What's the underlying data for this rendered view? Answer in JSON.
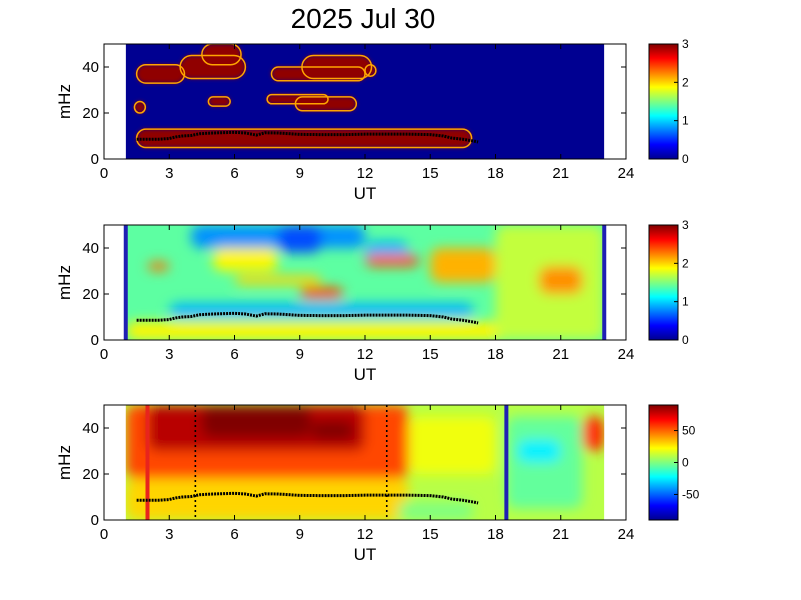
{
  "colors": {
    "background": "#ffffff",
    "axis": "#000000",
    "trace": "#000000",
    "marker_red": "#e8241d",
    "marker_blue": "#1f1fb4"
  },
  "chart_data": [
    {
      "type": "heatmap",
      "title": "2025 Jul 30",
      "xlabel": "UT",
      "ylabel": "mHz",
      "xlim": [
        0,
        24
      ],
      "ylim": [
        0,
        50
      ],
      "xticks": [
        "0",
        "3",
        "6",
        "9",
        "12",
        "15",
        "18",
        "21",
        "24"
      ],
      "yticks": [
        "0",
        "20",
        "40"
      ],
      "colorbar": {
        "range": [
          0,
          3
        ],
        "ticks": [
          "0",
          "1",
          "2",
          "3"
        ],
        "colormap": "jet"
      },
      "data_extent": [
        1,
        23
      ],
      "regions": [
        {
          "x": [
            4.5,
            6.3
          ],
          "y": [
            41,
            50
          ],
          "value": 2.95
        },
        {
          "x": [
            1.5,
            3.7
          ],
          "y": [
            33,
            41
          ],
          "value": 2.95
        },
        {
          "x": [
            3.5,
            6.5
          ],
          "y": [
            35,
            45
          ],
          "value": 2.95
        },
        {
          "x": [
            7.7,
            12.0
          ],
          "y": [
            34,
            40
          ],
          "value": 2.95
        },
        {
          "x": [
            9.1,
            12.3
          ],
          "y": [
            35,
            45
          ],
          "value": 2.95
        },
        {
          "x": [
            12.0,
            12.5
          ],
          "y": [
            36,
            41
          ],
          "value": 2.95
        },
        {
          "x": [
            1.4,
            1.9
          ],
          "y": [
            20,
            25
          ],
          "value": 2.95
        },
        {
          "x": [
            4.8,
            5.8
          ],
          "y": [
            23,
            27
          ],
          "value": 2.95
        },
        {
          "x": [
            7.5,
            10.3
          ],
          "y": [
            24,
            28
          ],
          "value": 2.95
        },
        {
          "x": [
            8.8,
            11.6
          ],
          "y": [
            21,
            27
          ],
          "value": 2.95
        },
        {
          "x": [
            1.5,
            16.9
          ],
          "y": [
            5,
            13
          ],
          "value": 2.95
        }
      ],
      "trace": [
        [
          1.5,
          8.6
        ],
        [
          2.5,
          8.6
        ],
        [
          3,
          8.9
        ],
        [
          3.3,
          9.6
        ],
        [
          3.6,
          10
        ],
        [
          4,
          10.2
        ],
        [
          4.4,
          11
        ],
        [
          5,
          11.3
        ],
        [
          6,
          11.6
        ],
        [
          6.5,
          11.3
        ],
        [
          7,
          10.4
        ],
        [
          7.4,
          11.4
        ],
        [
          8,
          11.3
        ],
        [
          9,
          10.7
        ],
        [
          10,
          10.6
        ],
        [
          11,
          10.6
        ],
        [
          12,
          10.8
        ],
        [
          13,
          10.8
        ],
        [
          14,
          10.8
        ],
        [
          15,
          10.6
        ],
        [
          15.6,
          10
        ],
        [
          16,
          9.1
        ],
        [
          16.5,
          8.6
        ],
        [
          17,
          7.8
        ],
        [
          17.2,
          7.4
        ]
      ]
    },
    {
      "type": "heatmap",
      "title": "",
      "xlabel": "UT",
      "ylabel": "mHz",
      "xlim": [
        0,
        24
      ],
      "ylim": [
        0,
        50
      ],
      "xticks": [
        "0",
        "3",
        "6",
        "9",
        "12",
        "15",
        "18",
        "21",
        "24"
      ],
      "yticks": [
        "0",
        "20",
        "40"
      ],
      "colorbar": {
        "range": [
          0,
          3
        ],
        "ticks": [
          "0",
          "1",
          "2",
          "3"
        ],
        "colormap": "jet"
      },
      "data_extent": [
        1,
        23
      ],
      "edge_lines": [
        1,
        23
      ],
      "regions": [
        {
          "x": [
            1,
            23
          ],
          "y": [
            0,
            50
          ],
          "value": 1.4
        },
        {
          "x": [
            1,
            23
          ],
          "y": [
            0,
            8
          ],
          "value": 1.9
        },
        {
          "x": [
            4,
            12
          ],
          "y": [
            40,
            50
          ],
          "value": 0.8
        },
        {
          "x": [
            8,
            10
          ],
          "y": [
            38,
            50
          ],
          "value": 0.6
        },
        {
          "x": [
            12,
            14
          ],
          "y": [
            33,
            43
          ],
          "value": 0.9
        },
        {
          "x": [
            15,
            18
          ],
          "y": [
            25,
            40
          ],
          "value": 2.1
        },
        {
          "x": [
            5,
            8
          ],
          "y": [
            30,
            40
          ],
          "value": 1.9
        },
        {
          "x": [
            12,
            14.5
          ],
          "y": [
            32,
            37
          ],
          "value": 2.4
        },
        {
          "x": [
            18,
            23
          ],
          "y": [
            0,
            50
          ],
          "value": 1.7
        },
        {
          "x": [
            20,
            22
          ],
          "y": [
            20,
            32
          ],
          "value": 2.2
        },
        {
          "x": [
            2,
            3
          ],
          "y": [
            30,
            34
          ],
          "value": 2.3
        },
        {
          "x": [
            3,
            17
          ],
          "y": [
            10,
            16
          ],
          "value": 0.9
        },
        {
          "x": [
            9,
            11
          ],
          "y": [
            18,
            23
          ],
          "value": 2.4
        },
        {
          "x": [
            6,
            10
          ],
          "y": [
            24,
            28
          ],
          "value": 2.0
        }
      ],
      "trace": [
        [
          1.5,
          8.6
        ],
        [
          2.5,
          8.6
        ],
        [
          3,
          8.9
        ],
        [
          3.3,
          9.6
        ],
        [
          3.6,
          10
        ],
        [
          4,
          10.2
        ],
        [
          4.4,
          11
        ],
        [
          5,
          11.3
        ],
        [
          6,
          11.6
        ],
        [
          6.5,
          11.3
        ],
        [
          7,
          10.4
        ],
        [
          7.4,
          11.4
        ],
        [
          8,
          11.3
        ],
        [
          9,
          10.7
        ],
        [
          10,
          10.6
        ],
        [
          11,
          10.6
        ],
        [
          12,
          10.8
        ],
        [
          13,
          10.8
        ],
        [
          14,
          10.8
        ],
        [
          15,
          10.6
        ],
        [
          15.6,
          10
        ],
        [
          16,
          9.1
        ],
        [
          16.5,
          8.6
        ],
        [
          17,
          7.8
        ],
        [
          17.2,
          7.4
        ]
      ]
    },
    {
      "type": "heatmap",
      "title": "",
      "xlabel": "UT",
      "ylabel": "mHz",
      "xlim": [
        0,
        24
      ],
      "ylim": [
        0,
        50
      ],
      "xticks": [
        "0",
        "3",
        "6",
        "9",
        "12",
        "15",
        "18",
        "21",
        "24"
      ],
      "yticks": [
        "0",
        "20",
        "40"
      ],
      "colorbar": {
        "range": [
          -90,
          90
        ],
        "ticks": [
          "50",
          "0",
          "-50"
        ],
        "tick_values": [
          50,
          0,
          -50
        ],
        "colormap": "jet"
      },
      "data_extent": [
        1,
        23
      ],
      "regions": [
        {
          "x": [
            1,
            23
          ],
          "y": [
            0,
            50
          ],
          "value": 10
        },
        {
          "x": [
            1,
            14
          ],
          "y": [
            18,
            50
          ],
          "value": 55
        },
        {
          "x": [
            2,
            12
          ],
          "y": [
            30,
            50
          ],
          "value": 80
        },
        {
          "x": [
            4.5,
            9.5
          ],
          "y": [
            36,
            50
          ],
          "value": 90
        },
        {
          "x": [
            9.5,
            11.5
          ],
          "y": [
            35,
            43
          ],
          "value": 90
        },
        {
          "x": [
            1,
            14
          ],
          "y": [
            0,
            18
          ],
          "value": 30
        },
        {
          "x": [
            14,
            18
          ],
          "y": [
            20,
            45
          ],
          "value": 20
        },
        {
          "x": [
            18.5,
            22
          ],
          "y": [
            5,
            45
          ],
          "value": -5
        },
        {
          "x": [
            19,
            21
          ],
          "y": [
            25,
            35
          ],
          "value": -25
        },
        {
          "x": [
            22,
            23
          ],
          "y": [
            30,
            45
          ],
          "value": 60
        },
        {
          "x": [
            13.5,
            17
          ],
          "y": [
            0,
            8
          ],
          "value": 0
        }
      ],
      "trace": [
        [
          1.5,
          8.6
        ],
        [
          2.5,
          8.6
        ],
        [
          3,
          8.9
        ],
        [
          3.3,
          9.6
        ],
        [
          3.6,
          10
        ],
        [
          4,
          10.2
        ],
        [
          4.4,
          11
        ],
        [
          5,
          11.3
        ],
        [
          6,
          11.6
        ],
        [
          6.5,
          11.3
        ],
        [
          7,
          10.4
        ],
        [
          7.4,
          11.4
        ],
        [
          8,
          11.3
        ],
        [
          9,
          10.7
        ],
        [
          10,
          10.6
        ],
        [
          11,
          10.6
        ],
        [
          12,
          10.8
        ],
        [
          13,
          10.8
        ],
        [
          14,
          10.8
        ],
        [
          15,
          10.6
        ],
        [
          15.6,
          10
        ],
        [
          16,
          9.1
        ],
        [
          16.5,
          8.6
        ],
        [
          17,
          7.8
        ],
        [
          17.2,
          7.4
        ]
      ],
      "markers": [
        {
          "x": 2.0,
          "color": "#e8241d",
          "style": "solid"
        },
        {
          "x": 4.2,
          "color": "#000000",
          "style": "dotted"
        },
        {
          "x": 13.0,
          "color": "#000000",
          "style": "dotted"
        },
        {
          "x": 18.5,
          "color": "#1f1fb4",
          "style": "solid"
        }
      ]
    }
  ]
}
